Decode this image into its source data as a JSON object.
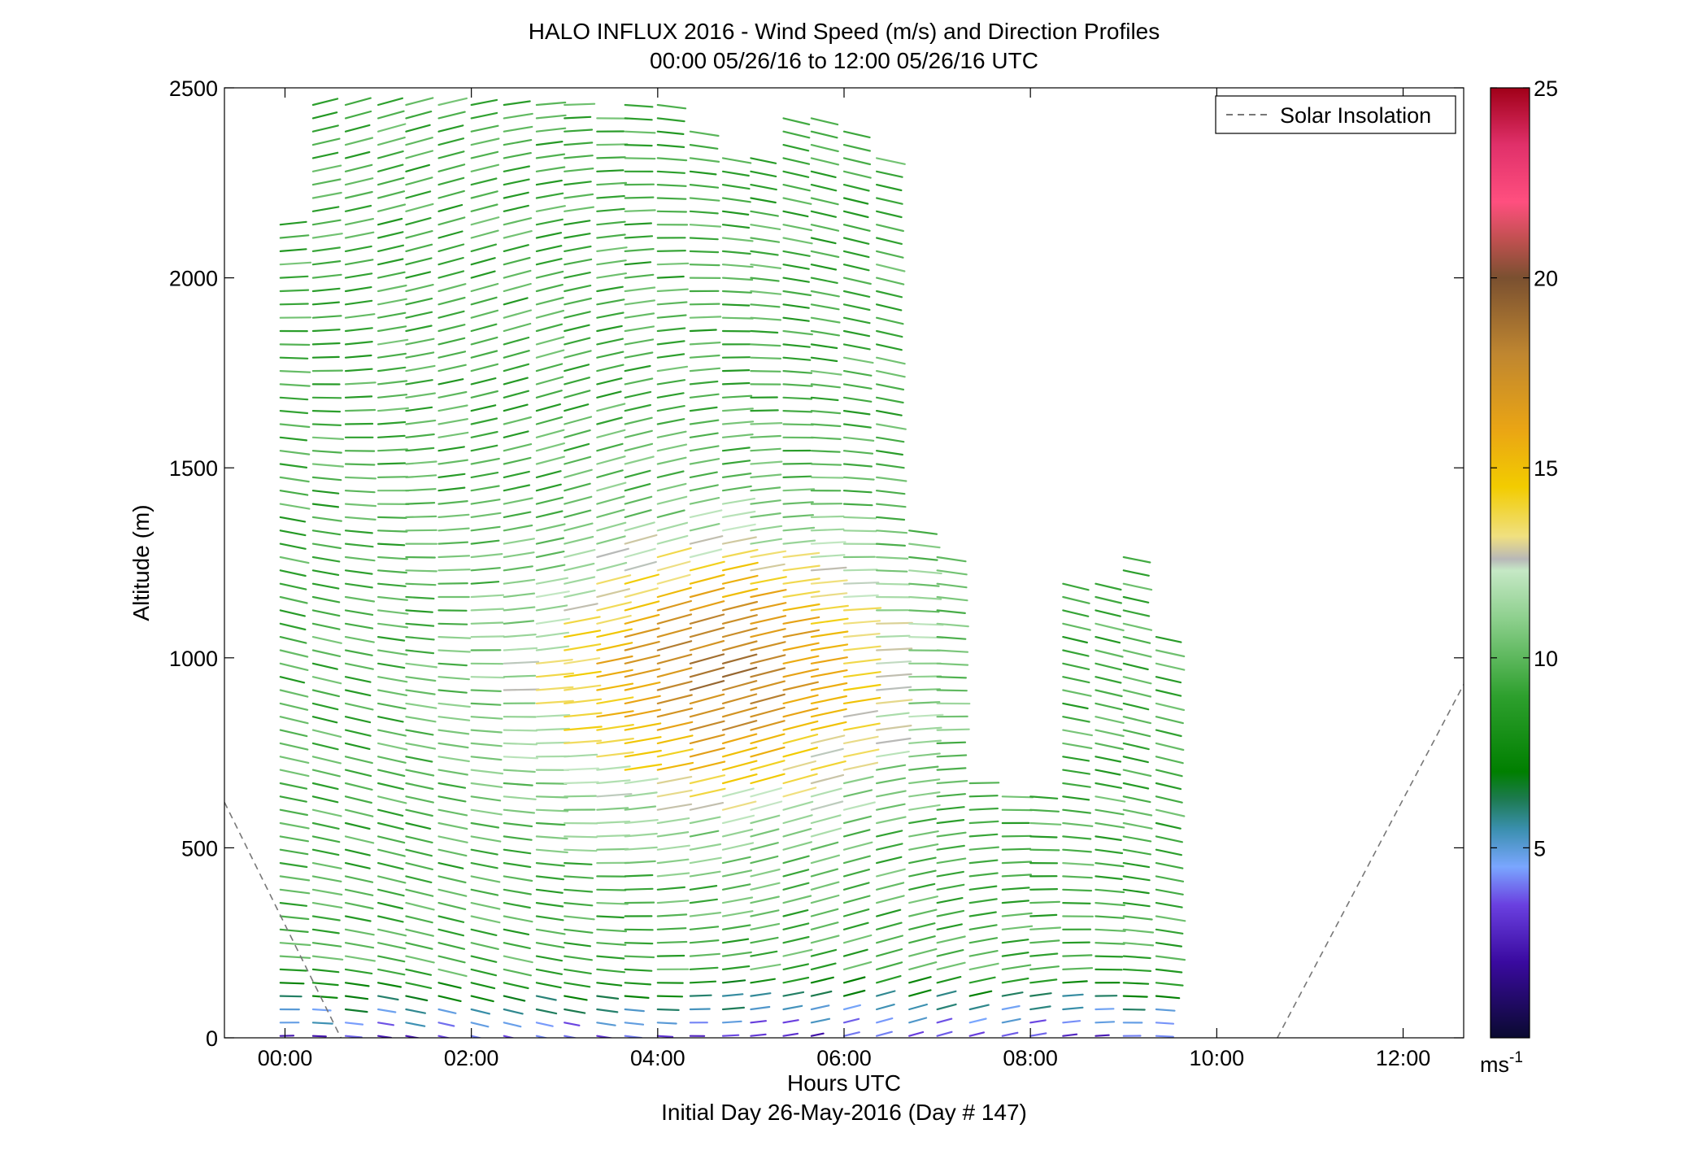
{
  "chart_data": {
    "type": "wind_barb_profile",
    "title": "HALO INFLUX 2016 - Wind Speed (m/s) and Direction Profiles",
    "subtitle": "00:00 05/26/16 to 12:00 05/26/16  UTC",
    "xlabel": "Hours UTC",
    "xlabel2": "Initial Day 26-May-2016 (Day # 147)",
    "ylabel": "Altitude (m)",
    "xlim": [
      -0.65,
      12.65
    ],
    "ylim": [
      0,
      2500
    ],
    "x_ticks": [
      0,
      2,
      4,
      6,
      8,
      10,
      12
    ],
    "x_tick_labels": [
      "00:00",
      "02:00",
      "04:00",
      "06:00",
      "08:00",
      "10:00",
      "12:00"
    ],
    "y_ticks": [
      0,
      500,
      1000,
      1500,
      2000,
      2500
    ],
    "y_tick_labels": [
      "0",
      "500",
      "1000",
      "1500",
      "2000",
      "2500"
    ],
    "legend": {
      "entries": [
        "Solar Insolation"
      ],
      "placement": "top-right",
      "line_style": "dashed",
      "line_color": "#777777"
    },
    "solar_insolation": [
      {
        "x": [
          -0.65,
          0.6
        ],
        "y": [
          620,
          0
        ]
      },
      {
        "x": [
          10.65,
          12.65
        ],
        "y": [
          0,
          930
        ]
      }
    ],
    "colorbar": {
      "label": "ms-1",
      "range": [
        0,
        25
      ],
      "ticks": [
        5,
        10,
        15,
        20,
        25
      ],
      "tick_labels": [
        "5",
        "10",
        "15",
        "20",
        "25"
      ],
      "stops": [
        {
          "v": 0,
          "color": "#0a0a30"
        },
        {
          "v": 2,
          "color": "#3a0aa0"
        },
        {
          "v": 3.5,
          "color": "#6a40e0"
        },
        {
          "v": 4.5,
          "color": "#7aa6ff"
        },
        {
          "v": 5.5,
          "color": "#3a8fae"
        },
        {
          "v": 6.3,
          "color": "#1c7a4e"
        },
        {
          "v": 7,
          "color": "#007f00"
        },
        {
          "v": 9,
          "color": "#2ea02e"
        },
        {
          "v": 11,
          "color": "#8ccf8c"
        },
        {
          "v": 12.3,
          "color": "#c5e8c5"
        },
        {
          "v": 12.6,
          "color": "#b8b8b8"
        },
        {
          "v": 13.2,
          "color": "#f0e080"
        },
        {
          "v": 14.5,
          "color": "#f2cc00"
        },
        {
          "v": 16,
          "color": "#eaa514"
        },
        {
          "v": 18,
          "color": "#bf8630"
        },
        {
          "v": 20,
          "color": "#7a5030"
        },
        {
          "v": 21,
          "color": "#c05050"
        },
        {
          "v": 22,
          "color": "#ff4f7f"
        },
        {
          "v": 23.5,
          "color": "#e0306a"
        },
        {
          "v": 25,
          "color": "#a00018"
        }
      ]
    },
    "wind_field": {
      "times": [
        -0.05,
        0.3,
        0.65,
        1.0,
        1.3,
        1.65,
        2.0,
        2.35,
        2.7,
        3.0,
        3.35,
        3.65,
        4.0,
        4.35,
        4.7,
        5.0,
        5.35,
        5.65,
        6.0,
        6.35,
        6.7,
        7.0,
        7.35,
        7.7,
        8.0,
        8.35,
        8.7,
        9.0,
        9.35
      ],
      "profile_tops": [
        2150,
        2480,
        2480,
        2480,
        2480,
        2480,
        2480,
        2480,
        2480,
        2480,
        2430,
        2480,
        2480,
        2400,
        2340,
        2330,
        2430,
        2440,
        2400,
        2320,
        1340,
        1280,
        680,
        660,
        640,
        1210,
        1210,
        1280,
        1080
      ],
      "level_spacing_m": 35,
      "min_speed_m_s": 3,
      "max_speed_m_s": 19,
      "core_speed_m_s": 19,
      "direction_deg_range": [
        230,
        300
      ]
    }
  }
}
